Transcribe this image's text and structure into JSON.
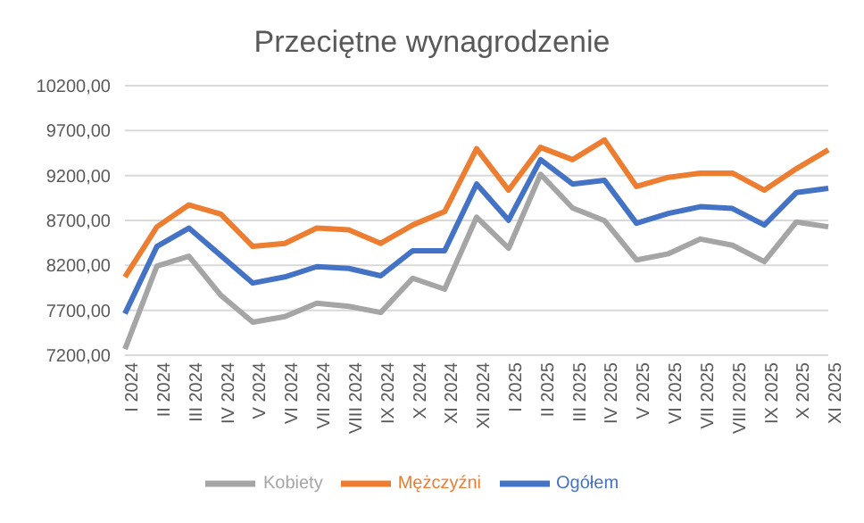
{
  "chart_data": {
    "type": "line",
    "title": "Przeciętne wynagrodzenie",
    "categories": [
      "I 2024",
      "II 2024",
      "III 2024",
      "IV 2024",
      "V 2024",
      "VI 2024",
      "VII 2024",
      "VIII 2024",
      "IX 2024",
      "X 2024",
      "XI 2024",
      "XII 2024",
      "I 2025",
      "II 2025",
      "III 2025",
      "IV 2025",
      "V 2025",
      "VI 2025",
      "VII 2025",
      "VIII 2025",
      "IX 2025",
      "X 2025",
      "XI 2025"
    ],
    "series": [
      {
        "name": "Ogółem",
        "color": "#4472c4",
        "values": [
          7663,
          8411,
          8615,
          8309,
          8003,
          8071,
          8186,
          8166,
          8084,
          8363,
          8363,
          9105,
          8703,
          9377,
          9105,
          9146,
          8669,
          8778,
          8853,
          8833,
          8649,
          9010,
          9057
        ]
      },
      {
        "name": "Mężczyźni",
        "color": "#ed7d31",
        "values": [
          8071,
          8629,
          8873,
          8771,
          8411,
          8445,
          8615,
          8595,
          8445,
          8649,
          8799,
          9499,
          9037,
          9513,
          9377,
          9595,
          9078,
          9180,
          9227,
          9227,
          9037,
          9275,
          9486
        ]
      },
      {
        "name": "Kobiety",
        "color": "#a5a5a5",
        "values": [
          7268,
          8193,
          8302,
          7867,
          7567,
          7629,
          7778,
          7744,
          7676,
          8057,
          7935,
          8737,
          8390,
          9214,
          8839,
          8697,
          8261,
          8329,
          8493,
          8424,
          8241,
          8683,
          8629
        ]
      }
    ],
    "ylim": [
      7200,
      10200
    ],
    "yticks": [
      {
        "value": 7200,
        "label": "7200,00"
      },
      {
        "value": 7700,
        "label": "7700,00"
      },
      {
        "value": 8200,
        "label": "8200,00"
      },
      {
        "value": 8700,
        "label": "8700,00"
      },
      {
        "value": 9200,
        "label": "9200,00"
      },
      {
        "value": 9700,
        "label": "9700,00"
      },
      {
        "value": 10200,
        "label": "10200,00"
      }
    ],
    "grid": "y",
    "legend": "bottom",
    "marker": "none",
    "line_style": "solid"
  }
}
